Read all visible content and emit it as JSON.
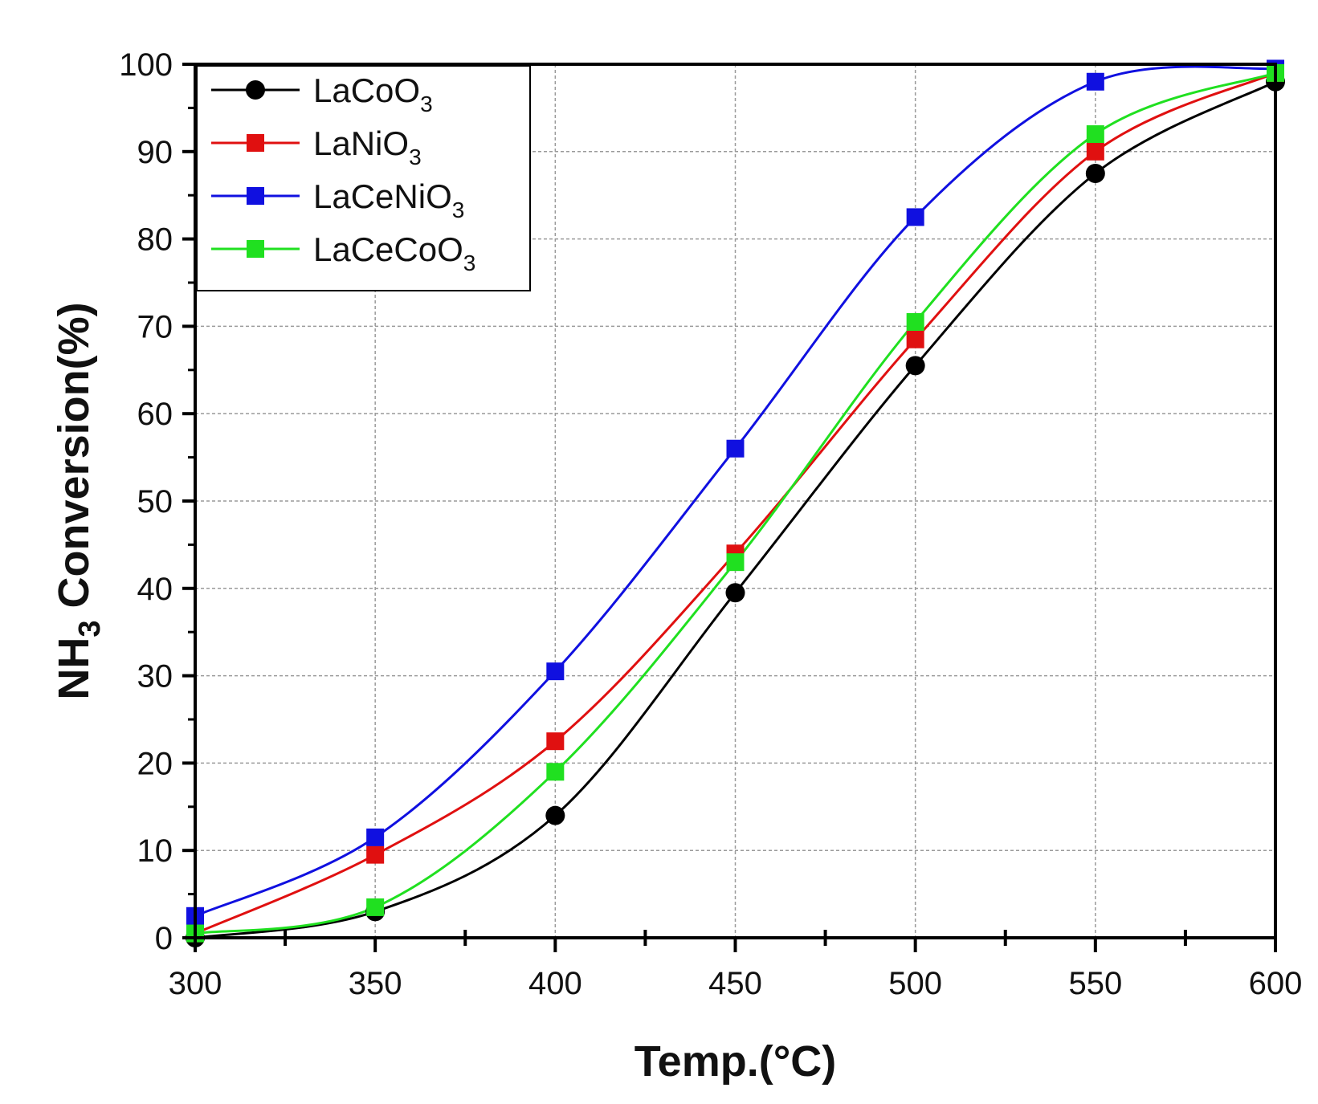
{
  "chart_data": {
    "type": "line",
    "title": "",
    "xlabel": "Temp.(°C)",
    "ylabel": {
      "prefix": "NH",
      "subscript": "3",
      "suffix": " Conversion(%)"
    },
    "xlim": [
      300,
      600
    ],
    "ylim": [
      0,
      100
    ],
    "xticks": [
      300,
      350,
      400,
      450,
      500,
      550,
      600
    ],
    "yticks": [
      0,
      10,
      20,
      30,
      40,
      50,
      60,
      70,
      80,
      90,
      100
    ],
    "grid": true,
    "legend_position": "top-left",
    "x": [
      300,
      350,
      400,
      450,
      500,
      550,
      600
    ],
    "series": [
      {
        "name": "LaCoO",
        "subscript": "3",
        "marker": "circle",
        "color": "#000000",
        "values": [
          0,
          3,
          14,
          39.5,
          65.5,
          87.5,
          98
        ]
      },
      {
        "name": "LaNiO",
        "subscript": "3",
        "marker": "square",
        "color": "#e01010",
        "values": [
          0.5,
          9.5,
          22.5,
          44,
          68.5,
          90,
          99
        ]
      },
      {
        "name": "LaCeNiO",
        "subscript": "3",
        "marker": "square",
        "color": "#1010e0",
        "values": [
          2.5,
          11.5,
          30.5,
          56,
          82.5,
          98,
          99.5
        ]
      },
      {
        "name": "LaCeCoO",
        "subscript": "3",
        "marker": "square",
        "color": "#20e020",
        "values": [
          0.5,
          3.5,
          19,
          43,
          70.5,
          92,
          99
        ]
      }
    ]
  }
}
